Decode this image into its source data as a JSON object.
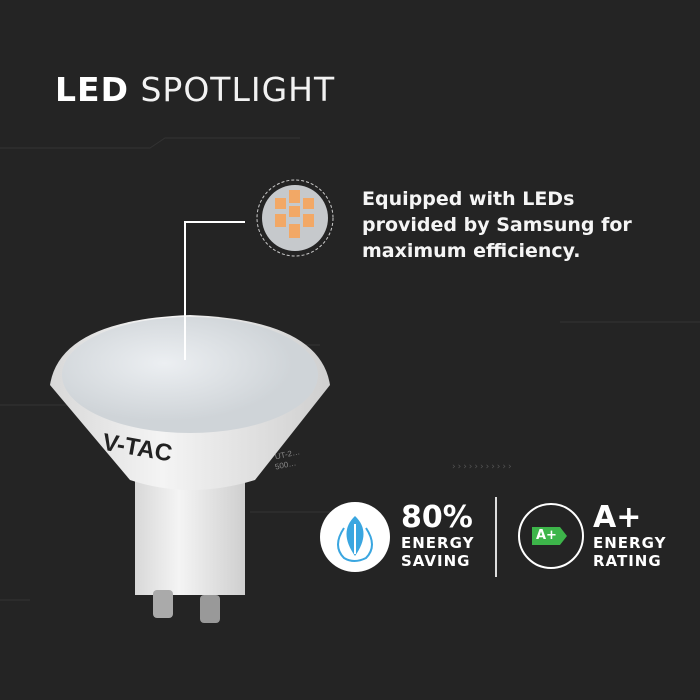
{
  "title": {
    "bold": "LED",
    "light": "SPOTLIGHT"
  },
  "feature": {
    "text": "Equipped with LEDs provided by Samsung for maximum efficiency."
  },
  "bulb": {
    "brand": "V-TAC",
    "label_lines": [
      "UT-2…",
      "500…"
    ]
  },
  "energy_saving": {
    "value": "80%",
    "line1": "ENERGY",
    "line2": "SAVING",
    "icon": "leaf-plug-icon",
    "color": "#3aa6e0"
  },
  "energy_rating": {
    "value": "A+",
    "line1": "ENERGY",
    "line2": "RATING",
    "badge": "A+",
    "badge_color": "#3db54a"
  },
  "decor": {
    "arrows": "›››››››››››"
  }
}
